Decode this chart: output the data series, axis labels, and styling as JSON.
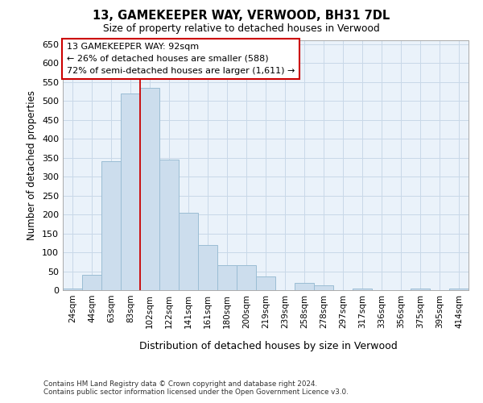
{
  "title_line1": "13, GAMEKEEPER WAY, VERWOOD, BH31 7DL",
  "title_line2": "Size of property relative to detached houses in Verwood",
  "xlabel": "Distribution of detached houses by size in Verwood",
  "ylabel": "Number of detached properties",
  "categories": [
    "24sqm",
    "44sqm",
    "63sqm",
    "83sqm",
    "102sqm",
    "122sqm",
    "141sqm",
    "161sqm",
    "180sqm",
    "200sqm",
    "219sqm",
    "239sqm",
    "258sqm",
    "278sqm",
    "297sqm",
    "317sqm",
    "336sqm",
    "356sqm",
    "375sqm",
    "395sqm",
    "414sqm"
  ],
  "values": [
    4,
    40,
    340,
    520,
    535,
    345,
    205,
    120,
    65,
    65,
    37,
    0,
    20,
    12,
    0,
    5,
    0,
    0,
    4,
    0,
    4
  ],
  "bar_color": "#ccdded",
  "bar_edge_color": "#9bbdd4",
  "grid_color": "#c8d8e8",
  "bg_color": "#eaf2fa",
  "vline_color": "#cc0000",
  "vline_x": 3.5,
  "annotation_text": "13 GAMEKEEPER WAY: 92sqm\n← 26% of detached houses are smaller (588)\n72% of semi-detached houses are larger (1,611) →",
  "annotation_box_color": "#cc0000",
  "ylim": [
    0,
    660
  ],
  "yticks": [
    0,
    50,
    100,
    150,
    200,
    250,
    300,
    350,
    400,
    450,
    500,
    550,
    600,
    650
  ],
  "footer_line1": "Contains HM Land Registry data © Crown copyright and database right 2024.",
  "footer_line2": "Contains public sector information licensed under the Open Government Licence v3.0."
}
